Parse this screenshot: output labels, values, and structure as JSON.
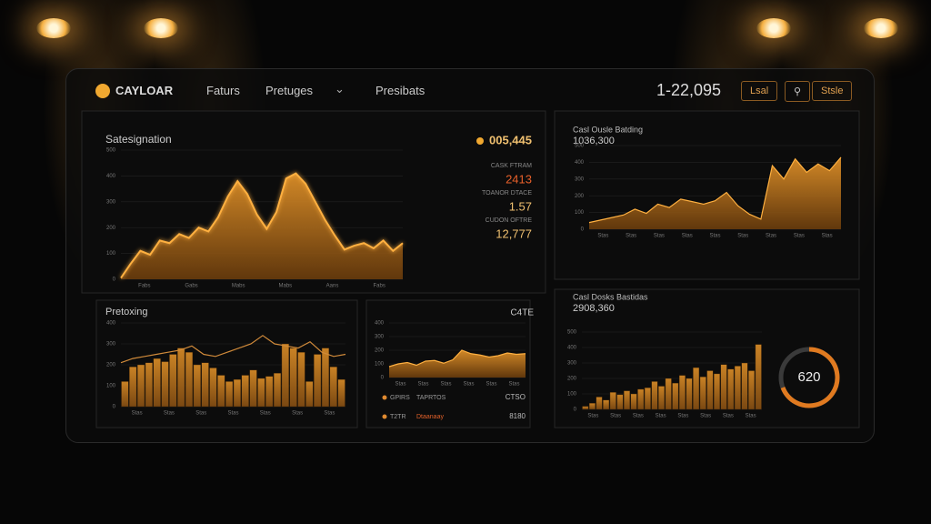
{
  "nav": {
    "brand": "CAYLOAR",
    "links": [
      "Faturs",
      "Pretuges",
      "Presibats"
    ],
    "counter": "1-22,095",
    "buttons": [
      "Lsal",
      "Stsle"
    ]
  },
  "panels": [
    {
      "title": "Satesignation",
      "kpi": "005,445",
      "chart": {
        "type": "area",
        "values": [
          5,
          60,
          110,
          95,
          150,
          140,
          175,
          160,
          200,
          185,
          240,
          320,
          380,
          330,
          250,
          195,
          260,
          390,
          410,
          370,
          300,
          230,
          170,
          115,
          130,
          140,
          120,
          150,
          110,
          140
        ],
        "ylim": [
          0,
          500
        ],
        "yticks": [
          0,
          100,
          200,
          300,
          400,
          500
        ],
        "xlabels": [
          "Fabs",
          "Gabs",
          "Mabs",
          "Mabs",
          "Aans",
          "Fabs"
        ]
      },
      "stats": [
        {
          "label": "CASK FTRAM",
          "value": "2413"
        },
        {
          "label": "TOANOR DTACE",
          "value": "1.57"
        },
        {
          "label": "CUDON OFTRE",
          "value": "12,777"
        }
      ]
    },
    {
      "title": "Casl Ousle Batding",
      "kpi": "1036,300",
      "chart": {
        "type": "area",
        "values": [
          40,
          55,
          70,
          85,
          120,
          95,
          150,
          130,
          180,
          165,
          150,
          170,
          220,
          140,
          90,
          60,
          380,
          300,
          420,
          340,
          390,
          350,
          430
        ],
        "ylim": [
          0,
          500
        ],
        "yticks": [
          0,
          100,
          200,
          300,
          400,
          500
        ],
        "xlabels": [
          "Stas",
          "Stas",
          "Stas",
          "Stas",
          "Stas",
          "Stas",
          "Stas",
          "Stas",
          "Stas"
        ]
      }
    },
    {
      "title": "Pretoxing",
      "chart": {
        "type": "bar",
        "values": [
          120,
          190,
          200,
          210,
          230,
          215,
          250,
          280,
          260,
          200,
          210,
          185,
          150,
          120,
          130,
          150,
          175,
          135,
          145,
          160,
          300,
          280,
          260,
          120,
          250,
          280,
          190,
          130
        ],
        "line": [
          210,
          230,
          240,
          250,
          260,
          270,
          290,
          250,
          240,
          260,
          280,
          300,
          340,
          300,
          290,
          280,
          310,
          260,
          240,
          250
        ],
        "ylim": [
          0,
          400
        ],
        "yticks": [
          0,
          100,
          200,
          300,
          400
        ],
        "xlabels": [
          "Stas",
          "Stas",
          "Stas",
          "Stas",
          "Stas",
          "Stas",
          "Stas"
        ]
      }
    },
    {
      "title": "C4TE",
      "chart": {
        "type": "area",
        "values": [
          80,
          100,
          110,
          90,
          120,
          125,
          105,
          130,
          200,
          175,
          165,
          150,
          160,
          180,
          170,
          175
        ],
        "ylim": [
          0,
          400
        ],
        "yticks": [
          0,
          100,
          200,
          300,
          400
        ],
        "xlabels": [
          "Stas",
          "Stas",
          "Stas",
          "Stas",
          "Stas",
          "Stas"
        ]
      },
      "legend": [
        {
          "label": "GPIRS",
          "name": "TAPRTOS",
          "value": "CTSO"
        },
        {
          "label": "T2TR",
          "name": "Dtaanaay",
          "value": "8180"
        }
      ]
    },
    {
      "title": "Casl Dosks Bastidas",
      "kpi": "2908,360",
      "gauge": "620",
      "chart": {
        "type": "bar",
        "values": [
          20,
          40,
          80,
          60,
          110,
          95,
          120,
          100,
          130,
          140,
          180,
          150,
          200,
          170,
          220,
          200,
          270,
          210,
          250,
          230,
          290,
          260,
          280,
          300,
          250,
          420
        ],
        "ylim": [
          0,
          500
        ],
        "yticks": [
          0,
          100,
          200,
          300,
          400,
          500
        ],
        "xlabels": [
          "Stas",
          "Stas",
          "Stas",
          "Stas",
          "Stas",
          "Stas",
          "Stas",
          "Stas"
        ]
      }
    }
  ]
}
